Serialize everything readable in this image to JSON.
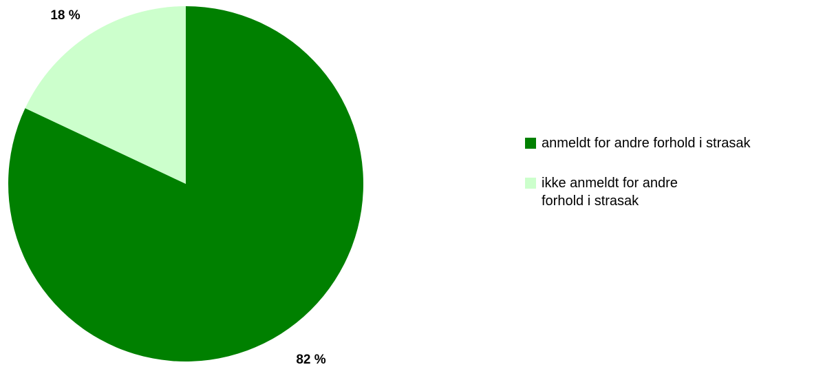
{
  "chart_data": {
    "type": "pie",
    "title": "",
    "slices": [
      {
        "label": "anmeldt for andre forhold i strasak",
        "value": 82,
        "display": "82 %",
        "color": "#008000"
      },
      {
        "label": "ikke anmeldt for andre forhold i strasak",
        "value": 18,
        "display": "18 %",
        "color": "#ccffcc"
      }
    ],
    "legend_position": "right"
  }
}
